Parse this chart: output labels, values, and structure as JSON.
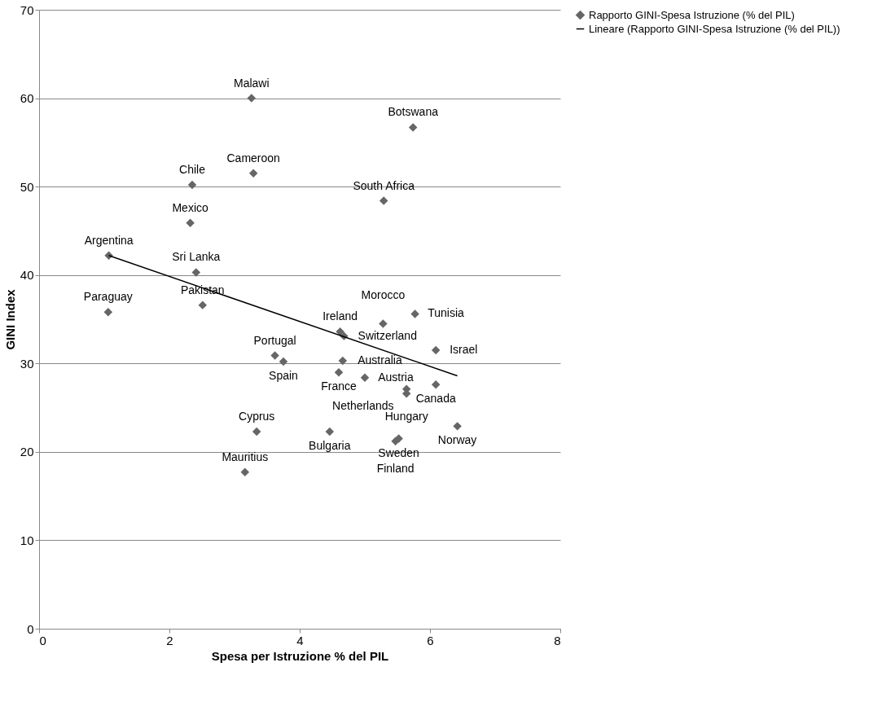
{
  "chart_data": {
    "type": "scatter",
    "xlabel": "Spesa per Istruzione % del PIL",
    "ylabel": "GINI Index",
    "xlim": [
      0,
      8
    ],
    "xticks": [
      0,
      2,
      4,
      6,
      8
    ],
    "ylim": [
      0,
      70
    ],
    "yticks": [
      0,
      10,
      20,
      30,
      40,
      50,
      60,
      70
    ],
    "grid": "y",
    "legend": "right",
    "series": [
      {
        "name": "Rapporto GINI-Spesa Istruzione (% del PIL)",
        "color": "#666666",
        "marker": "diamond",
        "x": [
          3.26,
          5.74,
          3.29,
          2.35,
          2.32,
          5.29,
          1.07,
          2.41,
          1.06,
          2.51,
          3.62,
          3.75,
          4.62,
          4.68,
          4.66,
          4.6,
          5.0,
          5.28,
          5.77,
          6.09,
          6.09,
          5.64,
          5.64,
          3.34,
          3.16,
          4.46,
          5.52,
          5.47,
          6.42
        ],
        "values": [
          60.0,
          56.7,
          51.5,
          50.2,
          45.9,
          48.4,
          42.2,
          40.3,
          35.8,
          36.6,
          30.9,
          30.2,
          33.6,
          33.1,
          30.3,
          29.0,
          28.4,
          34.5,
          35.6,
          31.5,
          27.6,
          27.1,
          26.6,
          22.3,
          17.7,
          22.3,
          21.5,
          21.2,
          22.9
        ],
        "value_labels": [
          "Malawi",
          "Botswana",
          "Cameroon",
          "Chile",
          "Mexico",
          "South Africa",
          "Argentina",
          "Sri Lanka",
          "Paraguay",
          "Pakistan",
          "Portugal",
          "Spain",
          "Ireland",
          "Switzerland",
          "Australia",
          "France",
          "Austria",
          "Morocco",
          "Tunisia",
          "Israel",
          "Canada",
          "Hungary",
          "Netherlands",
          "Cyprus",
          "Mauritius",
          "Bulgaria",
          "Sweden",
          "Finland",
          "Norway"
        ]
      },
      {
        "name": "Lineare (Rapporto GINI-Spesa Istruzione (% del PIL))",
        "type": "line",
        "color": "#000000",
        "x": [
          1.07,
          6.42
        ],
        "values": [
          42.2,
          28.6
        ]
      }
    ]
  }
}
